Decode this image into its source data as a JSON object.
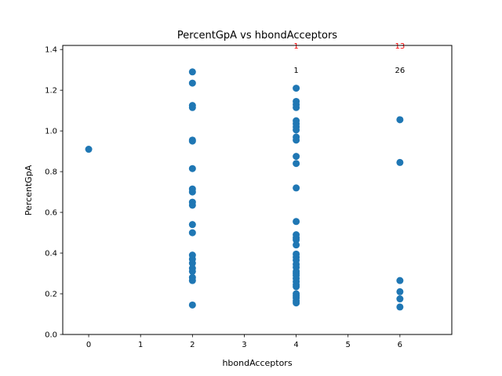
{
  "chart_data": {
    "type": "scatter",
    "title": "PercentGpA vs hbondAcceptors",
    "xlabel": "hbondAcceptors",
    "ylabel": "PercentGpA",
    "xlim": [
      -0.5,
      7.0
    ],
    "ylim": [
      0.0,
      1.42
    ],
    "xticks": [
      0,
      1,
      2,
      3,
      4,
      5,
      6
    ],
    "yticks": [
      0.0,
      0.2,
      0.4,
      0.6,
      0.8,
      1.0,
      1.2,
      1.4
    ],
    "ytick_labels": [
      "0.0",
      "0.2",
      "0.4",
      "0.6",
      "0.8",
      "1.0",
      "1.2",
      "1.4"
    ],
    "grid": false,
    "marker_color": "#1f77b4",
    "series": [
      {
        "name": "",
        "points": [
          {
            "x": 0,
            "y": 0.91
          },
          {
            "x": 2,
            "y": 1.29
          },
          {
            "x": 2,
            "y": 1.235
          },
          {
            "x": 2,
            "y": 1.125
          },
          {
            "x": 2,
            "y": 1.115
          },
          {
            "x": 2,
            "y": 0.955
          },
          {
            "x": 2,
            "y": 0.95
          },
          {
            "x": 2,
            "y": 0.815
          },
          {
            "x": 2,
            "y": 0.715
          },
          {
            "x": 2,
            "y": 0.7
          },
          {
            "x": 2,
            "y": 0.65
          },
          {
            "x": 2,
            "y": 0.635
          },
          {
            "x": 2,
            "y": 0.54
          },
          {
            "x": 2,
            "y": 0.5
          },
          {
            "x": 2,
            "y": 0.39
          },
          {
            "x": 2,
            "y": 0.37
          },
          {
            "x": 2,
            "y": 0.35
          },
          {
            "x": 2,
            "y": 0.325
          },
          {
            "x": 2,
            "y": 0.31
          },
          {
            "x": 2,
            "y": 0.28
          },
          {
            "x": 2,
            "y": 0.265
          },
          {
            "x": 2,
            "y": 0.145
          },
          {
            "x": 4,
            "y": 1.21
          },
          {
            "x": 4,
            "y": 1.145
          },
          {
            "x": 4,
            "y": 1.13
          },
          {
            "x": 4,
            "y": 1.115
          },
          {
            "x": 4,
            "y": 1.05
          },
          {
            "x": 4,
            "y": 1.035
          },
          {
            "x": 4,
            "y": 1.02
          },
          {
            "x": 4,
            "y": 1.005
          },
          {
            "x": 4,
            "y": 0.97
          },
          {
            "x": 4,
            "y": 0.955
          },
          {
            "x": 4,
            "y": 0.875
          },
          {
            "x": 4,
            "y": 0.84
          },
          {
            "x": 4,
            "y": 0.72
          },
          {
            "x": 4,
            "y": 0.555
          },
          {
            "x": 4,
            "y": 0.49
          },
          {
            "x": 4,
            "y": 0.475
          },
          {
            "x": 4,
            "y": 0.465
          },
          {
            "x": 4,
            "y": 0.44
          },
          {
            "x": 4,
            "y": 0.395
          },
          {
            "x": 4,
            "y": 0.38
          },
          {
            "x": 4,
            "y": 0.365
          },
          {
            "x": 4,
            "y": 0.345
          },
          {
            "x": 4,
            "y": 0.33
          },
          {
            "x": 4,
            "y": 0.31
          },
          {
            "x": 4,
            "y": 0.3
          },
          {
            "x": 4,
            "y": 0.29
          },
          {
            "x": 4,
            "y": 0.275
          },
          {
            "x": 4,
            "y": 0.26
          },
          {
            "x": 4,
            "y": 0.245
          },
          {
            "x": 4,
            "y": 0.235
          },
          {
            "x": 4,
            "y": 0.2
          },
          {
            "x": 4,
            "y": 0.19
          },
          {
            "x": 4,
            "y": 0.18
          },
          {
            "x": 4,
            "y": 0.165
          },
          {
            "x": 4,
            "y": 0.155
          },
          {
            "x": 6,
            "y": 1.055
          },
          {
            "x": 6,
            "y": 0.845
          },
          {
            "x": 6,
            "y": 0.265
          },
          {
            "x": 6,
            "y": 0.21
          },
          {
            "x": 6,
            "y": 0.175
          },
          {
            "x": 6,
            "y": 0.135
          }
        ]
      }
    ],
    "annotations": [
      {
        "x": 4,
        "y": 1.42,
        "text": "1",
        "color": "#ff0000"
      },
      {
        "x": 6,
        "y": 1.42,
        "text": "13",
        "color": "#ff0000"
      },
      {
        "x": 4,
        "y": 1.3,
        "text": "1",
        "color": "#000000"
      },
      {
        "x": 6,
        "y": 1.3,
        "text": "26",
        "color": "#000000"
      }
    ]
  }
}
